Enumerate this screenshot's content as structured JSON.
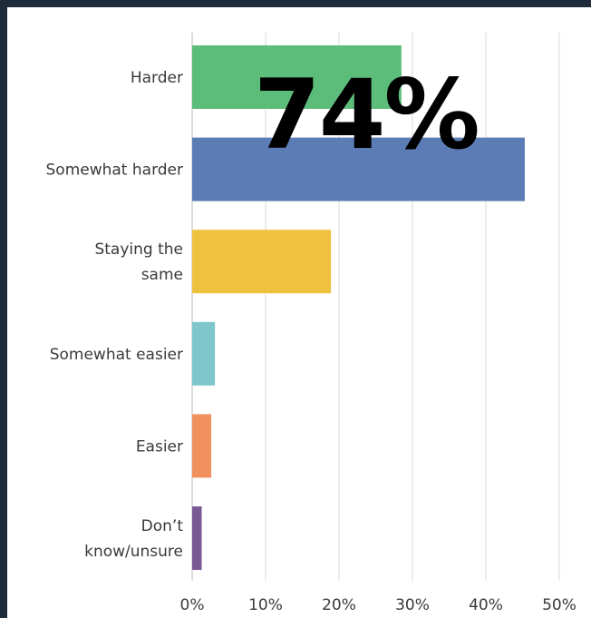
{
  "overlay": {
    "stat": "74%"
  },
  "chart_data": {
    "type": "bar",
    "orientation": "horizontal",
    "categories": [
      [
        "Harder"
      ],
      [
        "Somewhat harder"
      ],
      [
        "Staying the",
        "same"
      ],
      [
        "Somewhat easier"
      ],
      [
        "Easier"
      ],
      [
        "Don’t",
        "know/unsure"
      ]
    ],
    "values": [
      28.5,
      45.3,
      18.9,
      3.1,
      2.6,
      1.3
    ],
    "colors": [
      "#5cbd7b",
      "#5b7cb4",
      "#eec23f",
      "#7ec6cb",
      "#f0915e",
      "#7b5a93"
    ],
    "xlim": [
      0,
      50
    ],
    "xticks": [
      "0%",
      "10%",
      "20%",
      "30%",
      "40%",
      "50%"
    ],
    "grid": true,
    "title": "",
    "xlabel": "",
    "ylabel": ""
  }
}
